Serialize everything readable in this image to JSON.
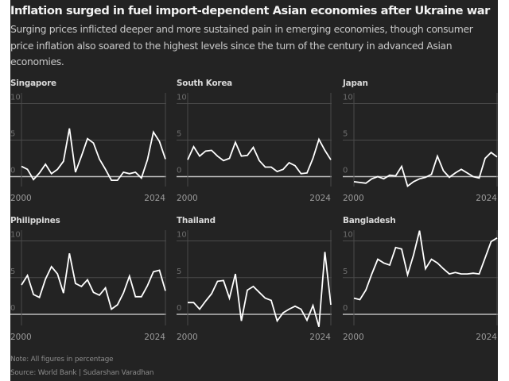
{
  "header": {
    "title": "Inflation surged in fuel import-dependent Asian economies after Ukraine war",
    "subtitle": "Surging prices inflicted deeper and more sustained pain in emerging economies, though consumer price inflation also soared to the highest levels since the turn of the century in advanced Asian economies."
  },
  "footer": {
    "note": "Note: All figures in percentage",
    "source": "Source: World Bank | Sudarshan Varadhan"
  },
  "colors": {
    "background": "#232323",
    "line": "#ffffff",
    "grid": "#4a4a4a",
    "zero_line": "#bdbdbd"
  },
  "chart_data": [
    {
      "type": "line",
      "title": "Singapore",
      "x": [
        2000,
        2001,
        2002,
        2003,
        2004,
        2005,
        2006,
        2007,
        2008,
        2009,
        2010,
        2011,
        2012,
        2013,
        2014,
        2015,
        2016,
        2017,
        2018,
        2019,
        2020,
        2021,
        2022,
        2023,
        2024
      ],
      "values": [
        1.4,
        1.0,
        -0.4,
        0.5,
        1.7,
        0.4,
        1.0,
        2.1,
        6.6,
        0.6,
        2.8,
        5.2,
        4.6,
        2.4,
        1.0,
        -0.5,
        -0.5,
        0.6,
        0.4,
        0.6,
        -0.2,
        2.3,
        6.1,
        4.8,
        2.4
      ],
      "ylim": [
        -2,
        10
      ],
      "yticks": [
        0,
        5,
        10
      ],
      "xtick_labels": [
        "2000",
        "2024"
      ],
      "grid": true,
      "xlabel": "",
      "ylabel": ""
    },
    {
      "type": "line",
      "title": "South Korea",
      "x": [
        2000,
        2001,
        2002,
        2003,
        2004,
        2005,
        2006,
        2007,
        2008,
        2009,
        2010,
        2011,
        2012,
        2013,
        2014,
        2015,
        2016,
        2017,
        2018,
        2019,
        2020,
        2021,
        2022,
        2023,
        2024
      ],
      "values": [
        2.3,
        4.1,
        2.8,
        3.5,
        3.6,
        2.8,
        2.2,
        2.5,
        4.7,
        2.8,
        2.9,
        4.0,
        2.2,
        1.3,
        1.3,
        0.7,
        1.0,
        1.9,
        1.5,
        0.4,
        0.5,
        2.5,
        5.1,
        3.6,
        2.3
      ],
      "ylim": [
        -2,
        10
      ],
      "yticks": [
        0,
        5,
        10
      ],
      "xtick_labels": [
        "2000",
        "2024"
      ],
      "grid": true,
      "xlabel": "",
      "ylabel": ""
    },
    {
      "type": "line",
      "title": "Japan",
      "x": [
        2000,
        2001,
        2002,
        2003,
        2004,
        2005,
        2006,
        2007,
        2008,
        2009,
        2010,
        2011,
        2012,
        2013,
        2014,
        2015,
        2016,
        2017,
        2018,
        2019,
        2020,
        2021,
        2022,
        2023,
        2024
      ],
      "values": [
        -0.7,
        -0.8,
        -0.9,
        -0.3,
        0.0,
        -0.3,
        0.2,
        0.1,
        1.4,
        -1.3,
        -0.7,
        -0.3,
        -0.1,
        0.3,
        2.8,
        0.8,
        -0.1,
        0.5,
        1.0,
        0.5,
        0.0,
        -0.2,
        2.5,
        3.3,
        2.7
      ],
      "ylim": [
        -2,
        10
      ],
      "yticks": [
        0,
        5,
        10
      ],
      "xtick_labels": [
        "2000",
        "2024"
      ],
      "grid": true,
      "xlabel": "",
      "ylabel": ""
    },
    {
      "type": "line",
      "title": "Philippines",
      "x": [
        2000,
        2001,
        2002,
        2003,
        2004,
        2005,
        2006,
        2007,
        2008,
        2009,
        2010,
        2011,
        2012,
        2013,
        2014,
        2015,
        2016,
        2017,
        2018,
        2019,
        2020,
        2021,
        2022,
        2023,
        2024
      ],
      "values": [
        4.0,
        5.3,
        2.7,
        2.3,
        4.8,
        6.5,
        5.5,
        2.9,
        8.3,
        4.2,
        3.8,
        4.7,
        3.0,
        2.6,
        3.6,
        0.7,
        1.3,
        2.9,
        5.2,
        2.4,
        2.4,
        3.9,
        5.8,
        6.0,
        3.2
      ],
      "ylim": [
        -2,
        10
      ],
      "yticks": [
        0,
        5,
        10
      ],
      "xtick_labels": [
        "2000",
        "2024"
      ],
      "grid": true,
      "xlabel": "",
      "ylabel": ""
    },
    {
      "type": "line",
      "title": "Thailand",
      "x": [
        2000,
        2001,
        2002,
        2003,
        2004,
        2005,
        2006,
        2007,
        2008,
        2009,
        2010,
        2011,
        2012,
        2013,
        2014,
        2015,
        2016,
        2017,
        2018,
        2019,
        2020,
        2021,
        2022,
        2023,
        2024
      ],
      "values": [
        1.6,
        1.6,
        0.7,
        1.8,
        2.8,
        4.5,
        4.6,
        2.2,
        5.5,
        -0.9,
        3.3,
        3.8,
        3.0,
        2.2,
        1.9,
        -0.9,
        0.2,
        0.7,
        1.1,
        0.7,
        -0.8,
        1.2,
        -1.7,
        8.5,
        1.3
      ],
      "ylim": [
        -2,
        10
      ],
      "yticks": [
        0,
        5,
        10
      ],
      "xtick_labels": [
        "2000",
        "2024"
      ],
      "grid": true,
      "xlabel": "",
      "ylabel": ""
    },
    {
      "type": "line",
      "title": "Bangladesh",
      "x": [
        2000,
        2001,
        2002,
        2003,
        2004,
        2005,
        2006,
        2007,
        2008,
        2009,
        2010,
        2011,
        2012,
        2013,
        2014,
        2015,
        2016,
        2017,
        2018,
        2019,
        2020,
        2021,
        2022,
        2023,
        2024
      ],
      "values": [
        2.2,
        2.0,
        3.3,
        5.5,
        7.5,
        7.0,
        6.7,
        9.1,
        8.9,
        5.4,
        8.1,
        11.4,
        6.2,
        7.5,
        7.0,
        6.2,
        5.5,
        5.7,
        5.5,
        5.5,
        5.6,
        5.5,
        7.7,
        9.9,
        10.4
      ],
      "ylim": [
        -2,
        10
      ],
      "yticks": [
        0,
        5,
        10
      ],
      "xtick_labels": [
        "2000",
        "2024"
      ],
      "grid": true,
      "xlabel": "",
      "ylabel": ""
    }
  ]
}
